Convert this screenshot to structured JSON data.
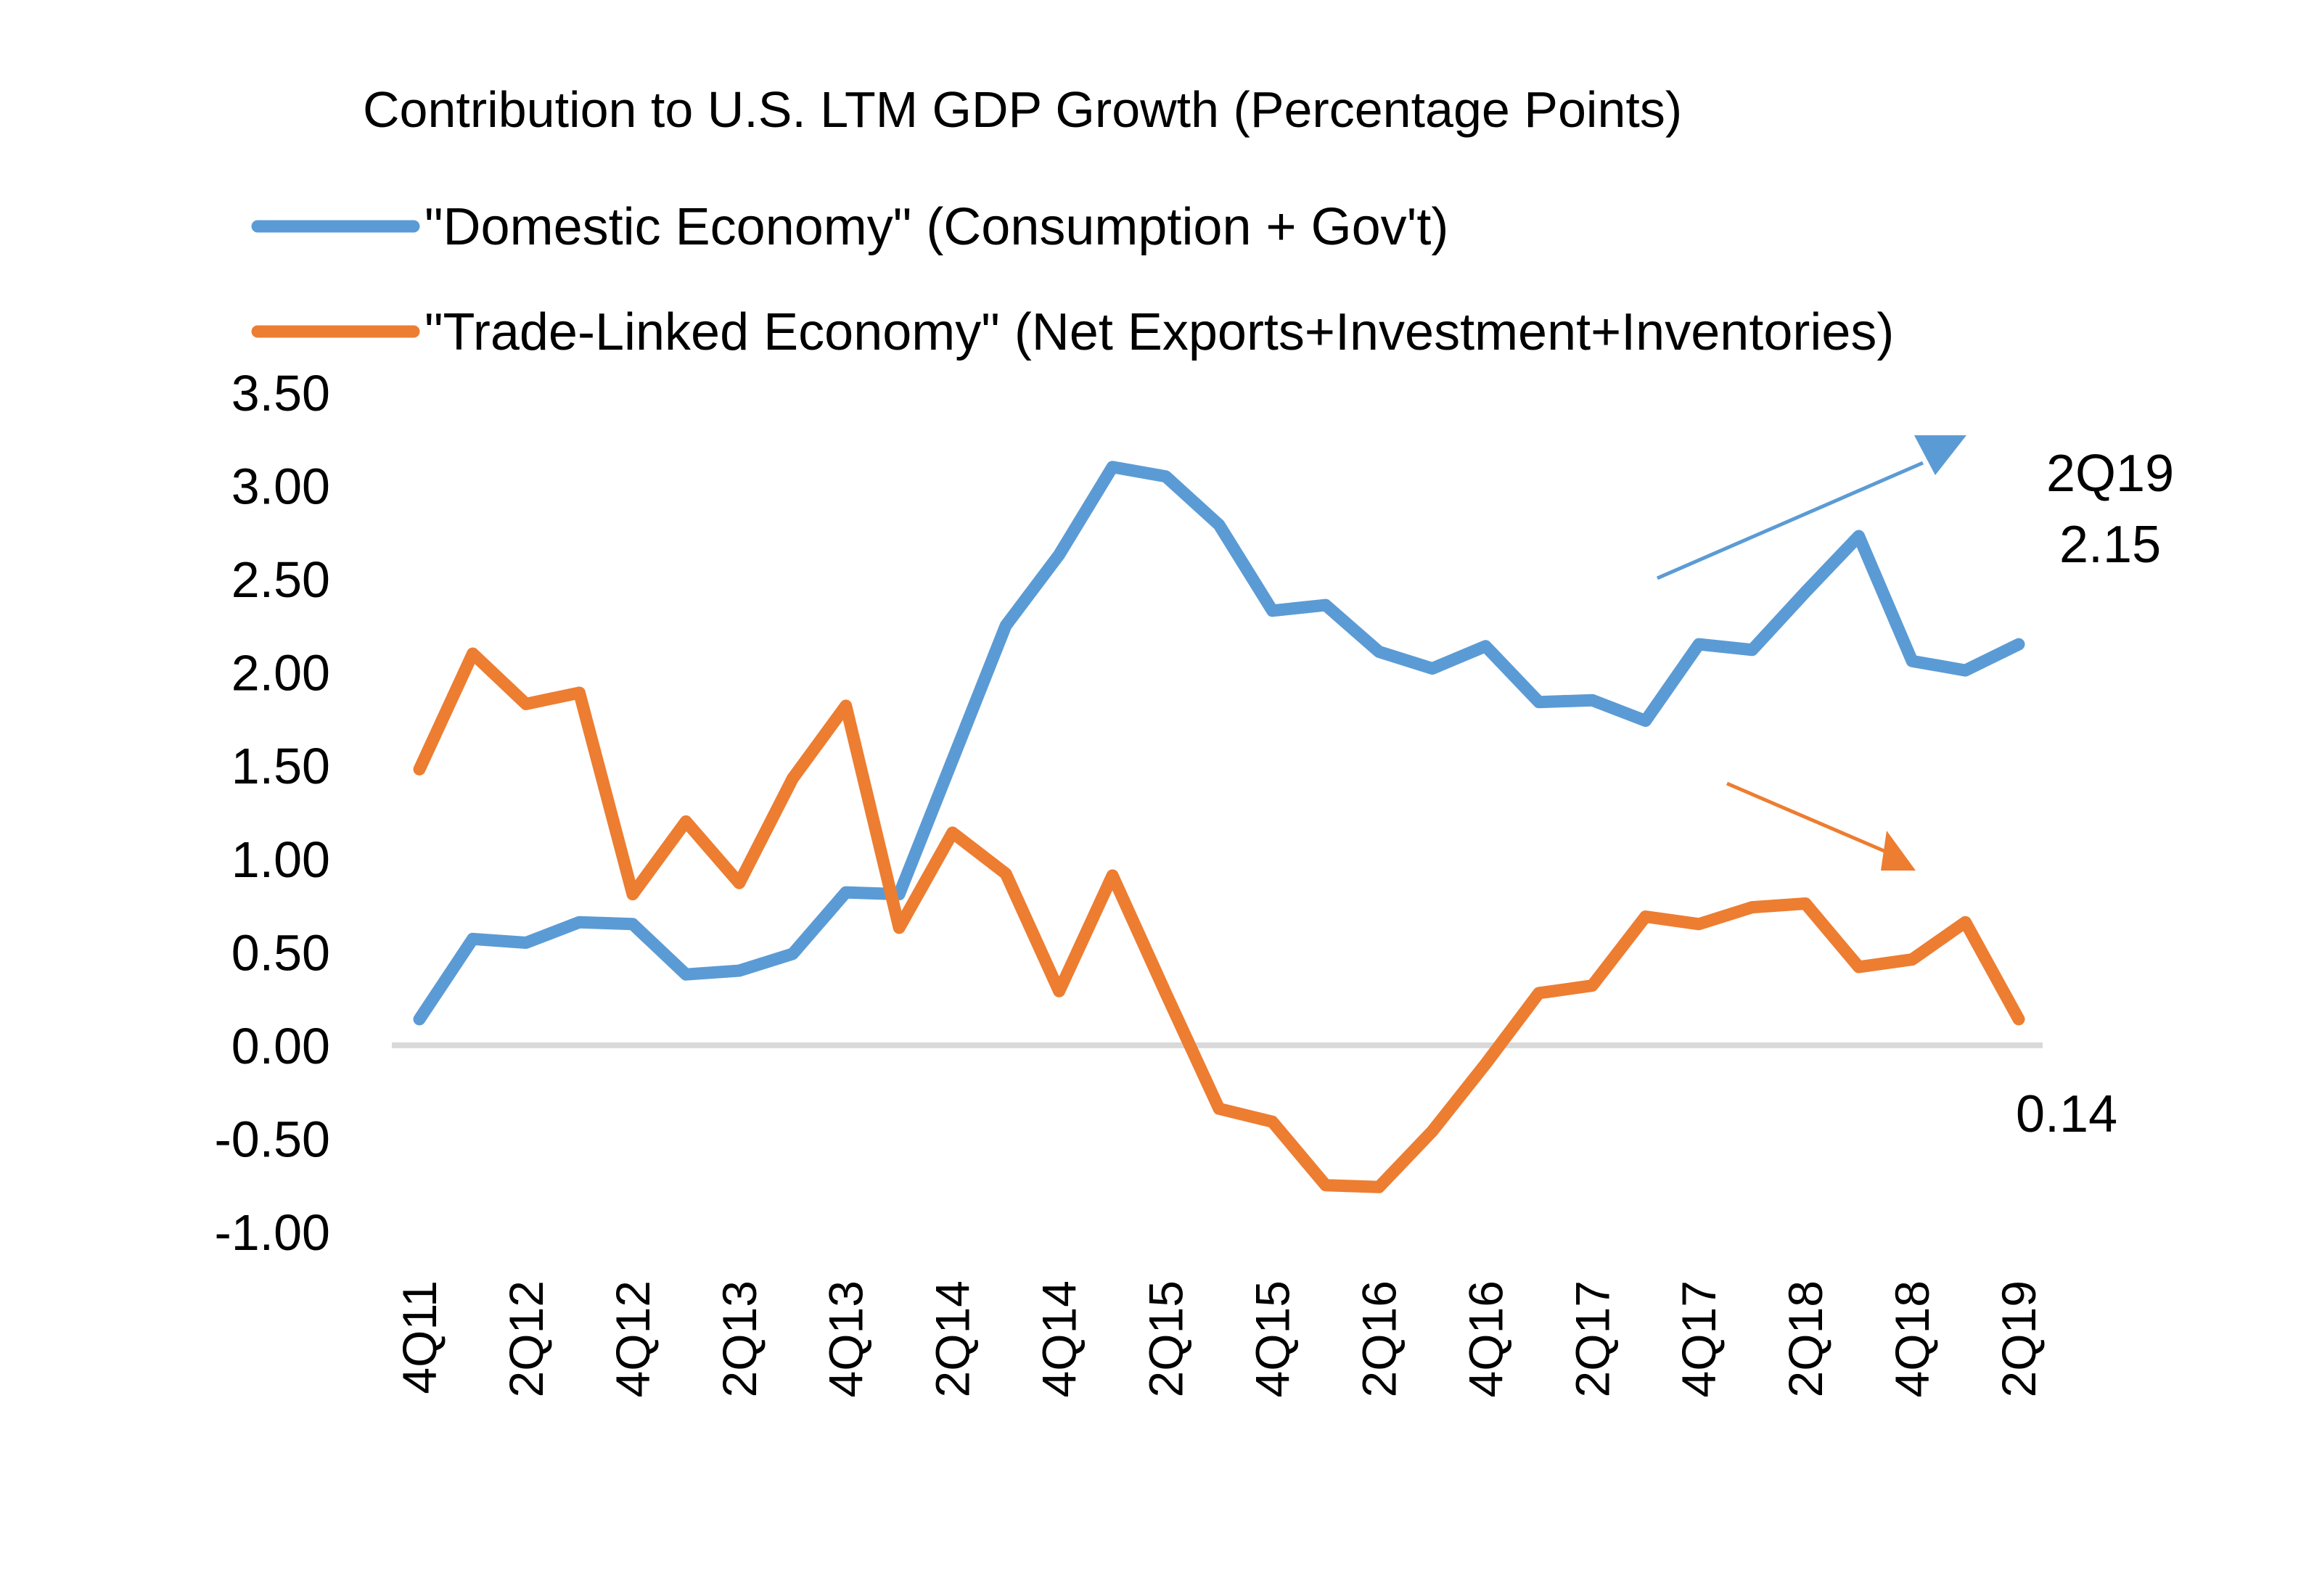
{
  "chart_data": {
    "type": "line",
    "title": "Contribution to U.S. LTM GDP Growth (Percentage Points)",
    "xlabel": "",
    "ylabel": "",
    "ylim": [
      -1.0,
      3.5
    ],
    "yticks": [
      3.5,
      3.0,
      2.5,
      2.0,
      1.5,
      1.0,
      0.5,
      0.0,
      -0.5,
      -1.0
    ],
    "ytick_labels": [
      "3.50",
      "3.00",
      "2.50",
      "2.00",
      "1.50",
      "1.00",
      "0.50",
      "0.00",
      "-0.50",
      "-1.00"
    ],
    "x": [
      "4Q11",
      "1Q12",
      "2Q12",
      "3Q12",
      "4Q12",
      "1Q13",
      "2Q13",
      "3Q13",
      "4Q13",
      "1Q14",
      "2Q14",
      "3Q14",
      "4Q14",
      "1Q15",
      "2Q15",
      "3Q15",
      "4Q15",
      "1Q16",
      "2Q16",
      "3Q16",
      "4Q16",
      "1Q17",
      "2Q17",
      "3Q17",
      "4Q17",
      "1Q18",
      "2Q18",
      "3Q18",
      "4Q18",
      "1Q19",
      "2Q19"
    ],
    "xtick_labels": [
      "4Q11",
      "2Q12",
      "4Q12",
      "2Q13",
      "4Q13",
      "2Q14",
      "4Q14",
      "2Q15",
      "4Q15",
      "2Q16",
      "4Q16",
      "2Q17",
      "4Q17",
      "2Q18",
      "4Q18",
      "2Q19"
    ],
    "grid": false,
    "zero_line": true,
    "legend_position": "top-left",
    "series": [
      {
        "name": "\"Domestic Economy\" (Consumption + Gov't)",
        "color": "#5B9BD5",
        "values": [
          0.14,
          0.57,
          0.55,
          0.66,
          0.65,
          0.38,
          0.4,
          0.49,
          0.82,
          0.81,
          1.53,
          2.25,
          2.63,
          3.1,
          3.05,
          2.79,
          2.33,
          2.36,
          2.11,
          2.02,
          2.14,
          1.84,
          1.85,
          1.74,
          2.15,
          2.12,
          2.43,
          2.73,
          2.06,
          2.01,
          2.15
        ]
      },
      {
        "name": "\"Trade-Linked Economy\" (Net Exports+Investment+Inventories)",
        "color": "#ED7D31",
        "values": [
          1.48,
          2.1,
          1.83,
          1.89,
          0.81,
          1.2,
          0.87,
          1.43,
          1.82,
          0.63,
          1.14,
          0.92,
          0.29,
          0.91,
          0.28,
          -0.34,
          -0.41,
          -0.75,
          -0.76,
          -0.46,
          -0.1,
          0.28,
          0.32,
          0.69,
          0.65,
          0.74,
          0.76,
          0.42,
          0.46,
          0.66,
          0.14
        ]
      }
    ],
    "annotations": [
      {
        "text": "2Q19",
        "series": "domestic"
      },
      {
        "text": "2.15",
        "series": "domestic"
      },
      {
        "text": "0.14",
        "series": "trade"
      }
    ],
    "trend_arrows": [
      {
        "series": "domestic",
        "direction": "up",
        "color": "#5B9BD5"
      },
      {
        "series": "trade",
        "direction": "down",
        "color": "#ED7D31"
      }
    ]
  }
}
